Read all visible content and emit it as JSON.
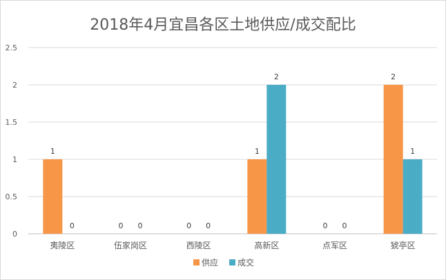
{
  "chart_data": {
    "type": "bar",
    "title": "2018年4月宜昌各区土地供应/成交配比",
    "categories": [
      "夷陵区",
      "伍家岗区",
      "西陵区",
      "高新区",
      "点军区",
      "猇亭区"
    ],
    "series": [
      {
        "name": "供应",
        "color": "#F79646",
        "values": [
          1,
          0,
          0,
          1,
          0,
          2
        ]
      },
      {
        "name": "成交",
        "color": "#4BACC6",
        "values": [
          0,
          0,
          0,
          2,
          0,
          1
        ]
      }
    ],
    "y_ticks": [
      "0",
      "0.5",
      "1",
      "1.5",
      "2",
      "2.5"
    ],
    "ylim": [
      0,
      2.5
    ],
    "data_labels": true,
    "grid": true,
    "legend_position": "bottom"
  }
}
